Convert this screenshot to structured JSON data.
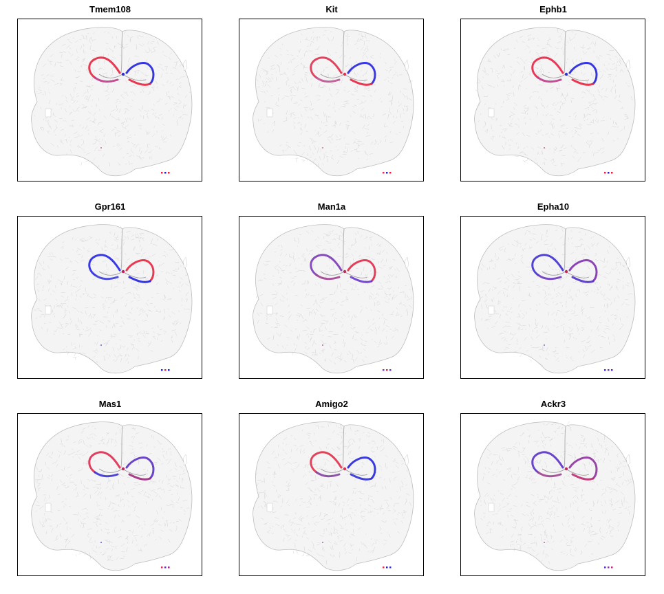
{
  "panels": [
    {
      "title": "Tmem108",
      "colors": {
        "upper_left": "#e8233f",
        "upper_right": "#2020e0",
        "lower_left": "#c03a8a",
        "lower_right": "#e8233f",
        "center": "#3030d0"
      }
    },
    {
      "title": "Kit",
      "colors": {
        "upper_left": "#e0304f",
        "upper_right": "#2323e3",
        "lower_left": "#c05090",
        "lower_right": "#e8233f",
        "center": "#e03050"
      }
    },
    {
      "title": "Ephb1",
      "colors": {
        "upper_left": "#e82345",
        "upper_right": "#2020e0",
        "lower_left": "#c03a8a",
        "lower_right": "#e8233f",
        "center": "#3030d0"
      }
    },
    {
      "title": "Gpr161",
      "colors": {
        "upper_left": "#2525e5",
        "upper_right": "#e8233f",
        "lower_left": "#3a3ad8",
        "lower_right": "#2020e0",
        "center": "#c02060"
      }
    },
    {
      "title": "Man1a",
      "colors": {
        "upper_left": "#7a3ab8",
        "upper_right": "#e02a4a",
        "lower_left": "#a04090",
        "lower_right": "#6a3acc",
        "center": "#c02a5a"
      }
    },
    {
      "title": "Epha10",
      "colors": {
        "upper_left": "#4030d0",
        "upper_right": "#8030b0",
        "lower_left": "#6a38c0",
        "lower_right": "#5030c8",
        "center": "#c02a5a"
      }
    },
    {
      "title": "Mas1",
      "colors": {
        "upper_left": "#e02a50",
        "upper_right": "#5a30c8",
        "lower_left": "#3a30d8",
        "lower_right": "#a02a80",
        "center": "#c02a5a"
      }
    },
    {
      "title": "Amigo2",
      "colors": {
        "upper_left": "#e0304a",
        "upper_right": "#2525e0",
        "lower_left": "#8040a0",
        "lower_right": "#3030d8",
        "center": "#e03050"
      }
    },
    {
      "title": "Ackr3",
      "colors": {
        "upper_left": "#5a30c8",
        "upper_right": "#9030a0",
        "lower_left": "#a04090",
        "lower_right": "#c02a70",
        "center": "#c02a5a"
      }
    }
  ],
  "tissue_color": "#cfcfcf"
}
